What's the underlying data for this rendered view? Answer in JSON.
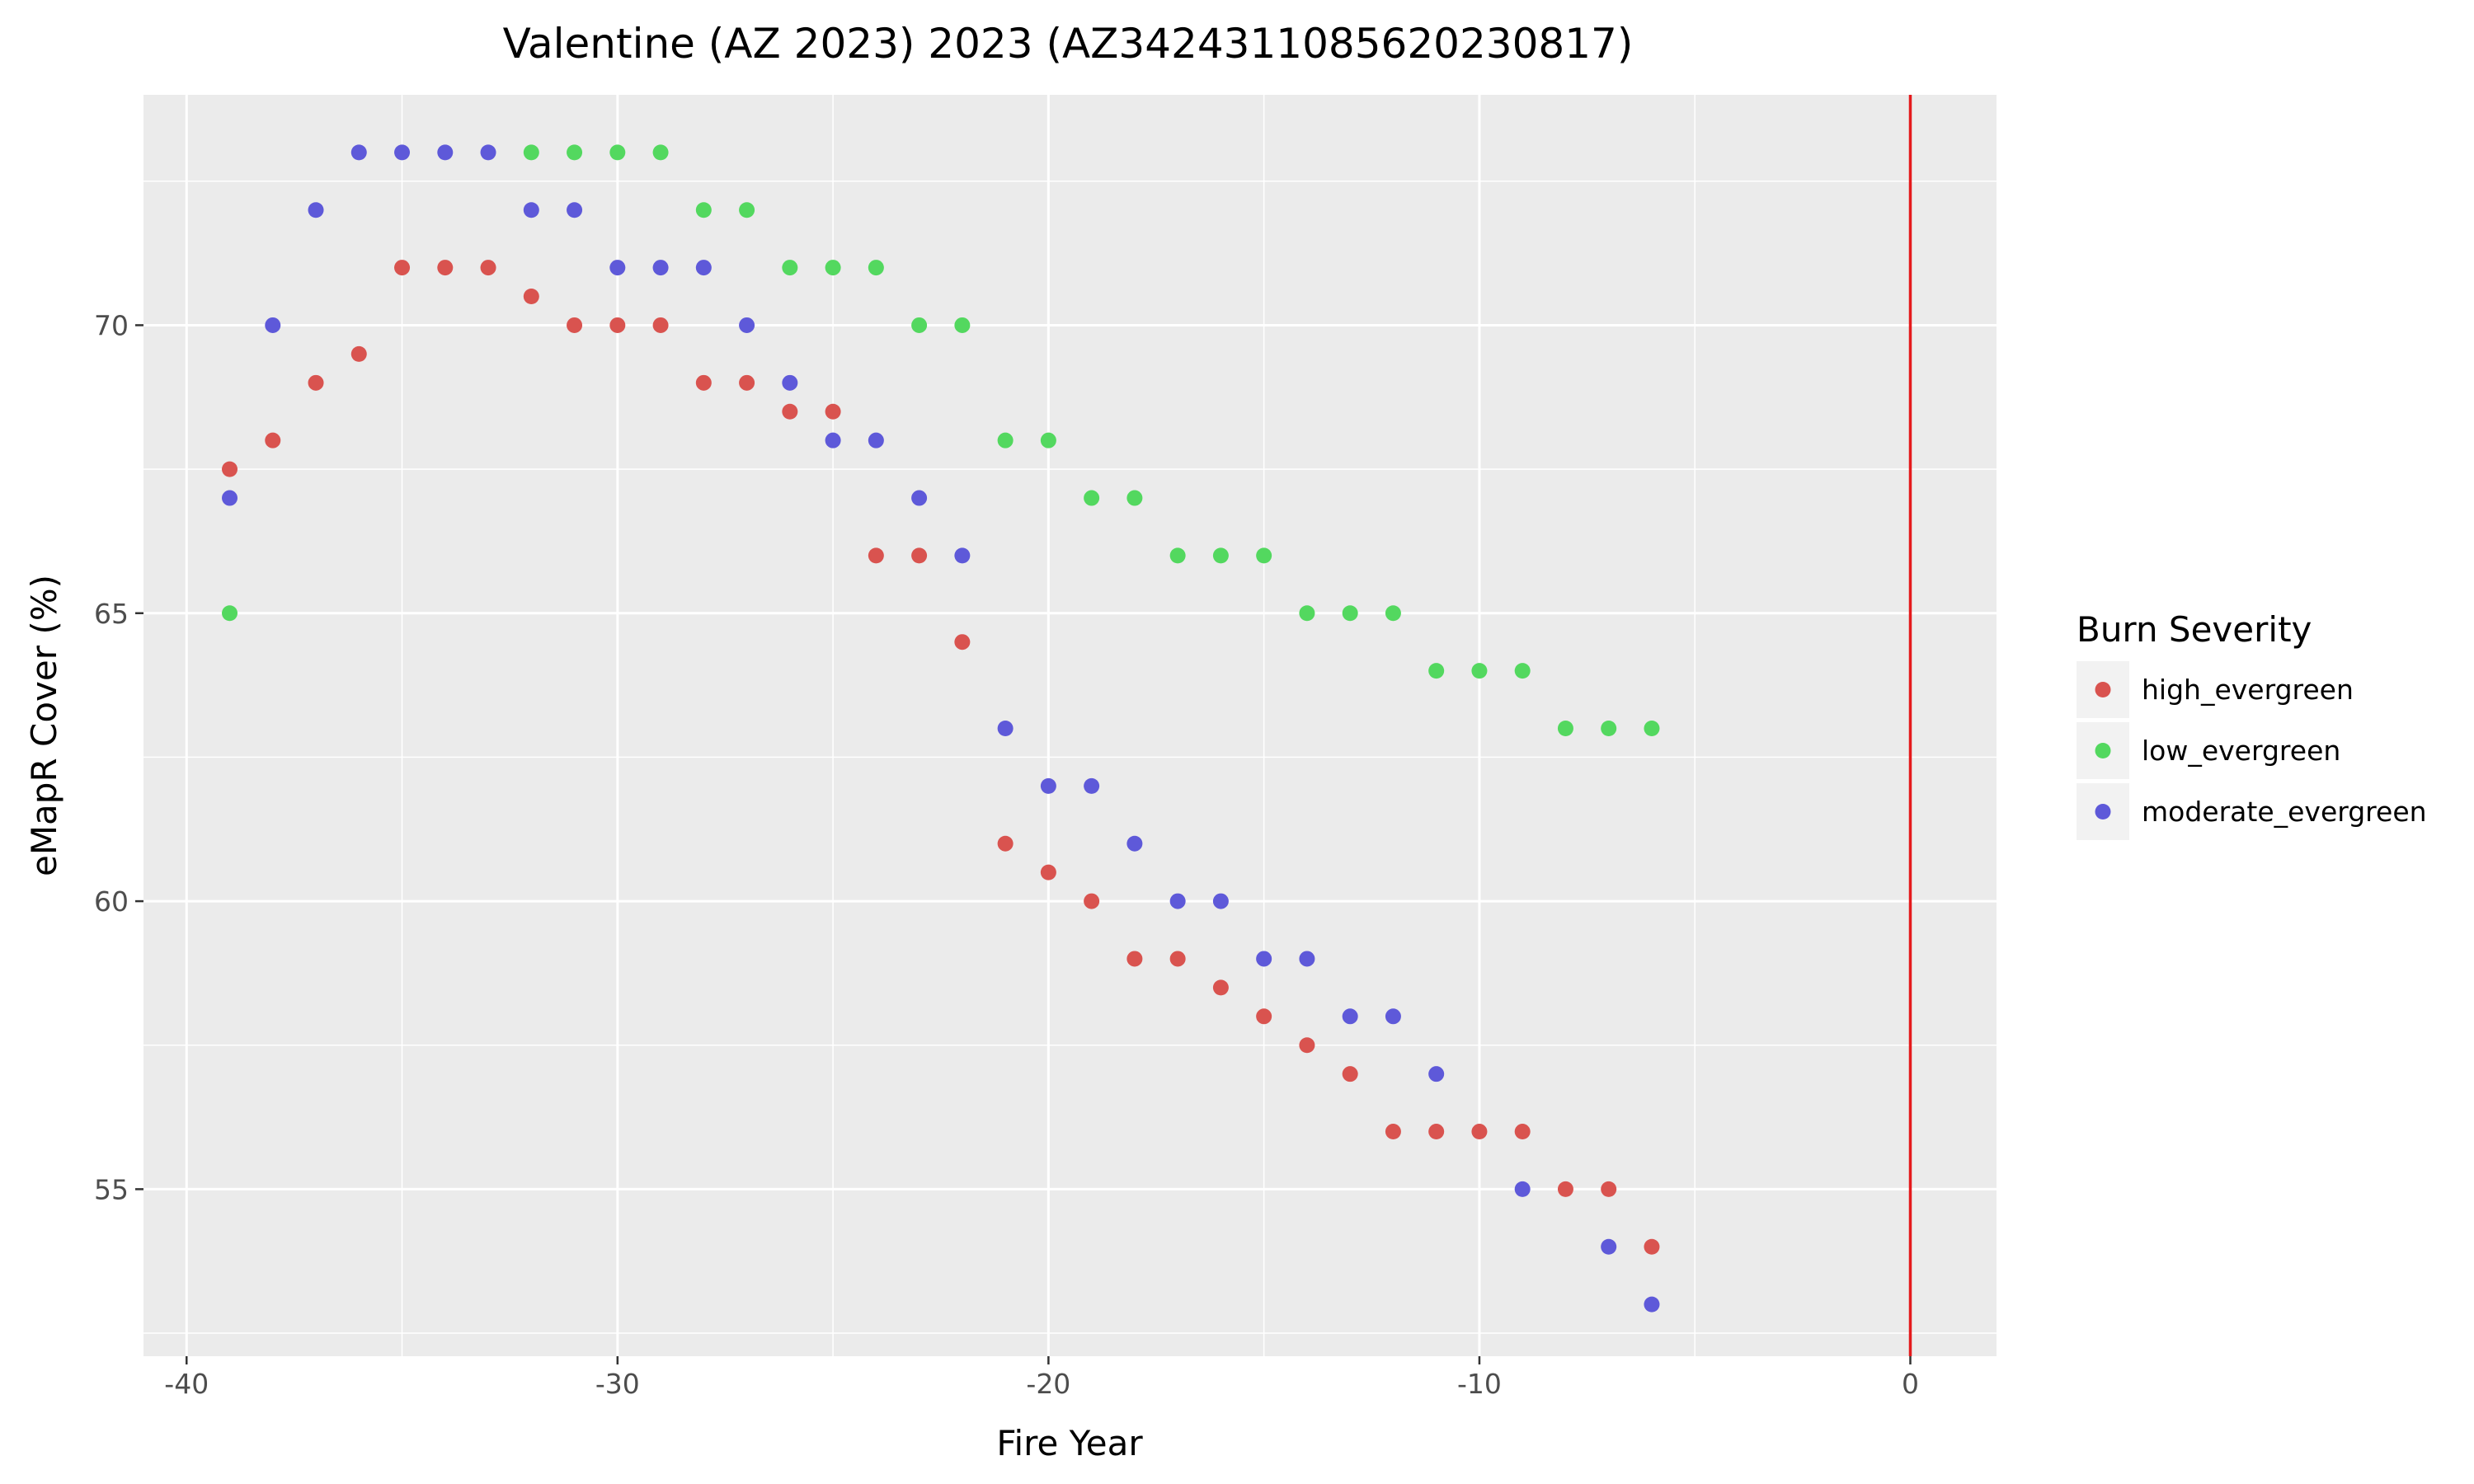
{
  "chart_data": {
    "type": "scatter",
    "title": "Valentine (AZ 2023) 2023 (AZ3424311085620230817)",
    "xlabel": "Fire Year",
    "ylabel": "eMapR Cover (%)",
    "xlim": [
      -41,
      2
    ],
    "ylim": [
      52.1,
      74.0
    ],
    "x_ticks": [
      -40,
      -30,
      -20,
      -10,
      0
    ],
    "y_ticks": [
      55,
      60,
      65,
      70
    ],
    "x_tick_labels": [
      "-40",
      "-30",
      "-20",
      "-10",
      "0"
    ],
    "y_tick_labels": [
      "55",
      "60",
      "65",
      "70"
    ],
    "grid": true,
    "reference_line": {
      "x": 0,
      "color": "#e41a1c"
    },
    "legend": {
      "title": "Burn Severity",
      "position": "right"
    },
    "series": [
      {
        "name": "high_evergreen",
        "color": "#d9534f",
        "points": [
          [
            -39,
            67.5
          ],
          [
            -38,
            68
          ],
          [
            -37,
            69
          ],
          [
            -36,
            69.5
          ],
          [
            -35,
            71
          ],
          [
            -34,
            71
          ],
          [
            -33,
            71
          ],
          [
            -32,
            70.5
          ],
          [
            -31,
            70
          ],
          [
            -30,
            70
          ],
          [
            -29,
            70
          ],
          [
            -28,
            69
          ],
          [
            -27,
            69
          ],
          [
            -26,
            68.5
          ],
          [
            -25,
            68.5
          ],
          [
            -24,
            66
          ],
          [
            -23,
            66
          ],
          [
            -22,
            64.5
          ],
          [
            -21,
            61
          ],
          [
            -20,
            60.5
          ],
          [
            -19,
            60
          ],
          [
            -18,
            59
          ],
          [
            -17,
            59
          ],
          [
            -16,
            58.5
          ],
          [
            -15,
            58
          ],
          [
            -14,
            57.5
          ],
          [
            -13,
            57
          ],
          [
            -12,
            56
          ],
          [
            -11,
            56
          ],
          [
            -10,
            56
          ],
          [
            -9,
            56
          ],
          [
            -8,
            55
          ],
          [
            -7,
            55
          ],
          [
            -6,
            54
          ]
        ]
      },
      {
        "name": "low_evergreen",
        "color": "#53d85f",
        "points": [
          [
            -39,
            65
          ],
          [
            -32,
            73
          ],
          [
            -31,
            73
          ],
          [
            -30,
            73
          ],
          [
            -29,
            73
          ],
          [
            -28,
            72
          ],
          [
            -27,
            72
          ],
          [
            -26,
            71
          ],
          [
            -25,
            71
          ],
          [
            -24,
            71
          ],
          [
            -23,
            70
          ],
          [
            -22,
            70
          ],
          [
            -21,
            68
          ],
          [
            -20,
            68
          ],
          [
            -19,
            67
          ],
          [
            -18,
            67
          ],
          [
            -17,
            66
          ],
          [
            -16,
            66
          ],
          [
            -15,
            66
          ],
          [
            -14,
            65
          ],
          [
            -13,
            65
          ],
          [
            -12,
            65
          ],
          [
            -11,
            64
          ],
          [
            -10,
            64
          ],
          [
            -9,
            64
          ],
          [
            -8,
            63
          ],
          [
            -7,
            63
          ],
          [
            -6,
            63
          ]
        ]
      },
      {
        "name": "moderate_evergreen",
        "color": "#5e59d9",
        "points": [
          [
            -39,
            67
          ],
          [
            -38,
            70
          ],
          [
            -37,
            72
          ],
          [
            -36,
            73
          ],
          [
            -35,
            73
          ],
          [
            -34,
            73
          ],
          [
            -33,
            73
          ],
          [
            -32,
            72
          ],
          [
            -31,
            72
          ],
          [
            -30,
            71
          ],
          [
            -29,
            71
          ],
          [
            -28,
            71
          ],
          [
            -27,
            70
          ],
          [
            -26,
            69
          ],
          [
            -25,
            68
          ],
          [
            -24,
            68
          ],
          [
            -23,
            67
          ],
          [
            -22,
            66
          ],
          [
            -21,
            63
          ],
          [
            -20,
            62
          ],
          [
            -19,
            62
          ],
          [
            -18,
            61
          ],
          [
            -17,
            60
          ],
          [
            -16,
            60
          ],
          [
            -15,
            59
          ],
          [
            -14,
            59
          ],
          [
            -13,
            58
          ],
          [
            -12,
            58
          ],
          [
            -11,
            57
          ],
          [
            -9,
            55
          ],
          [
            -7,
            54
          ],
          [
            -6,
            53
          ]
        ]
      }
    ]
  }
}
